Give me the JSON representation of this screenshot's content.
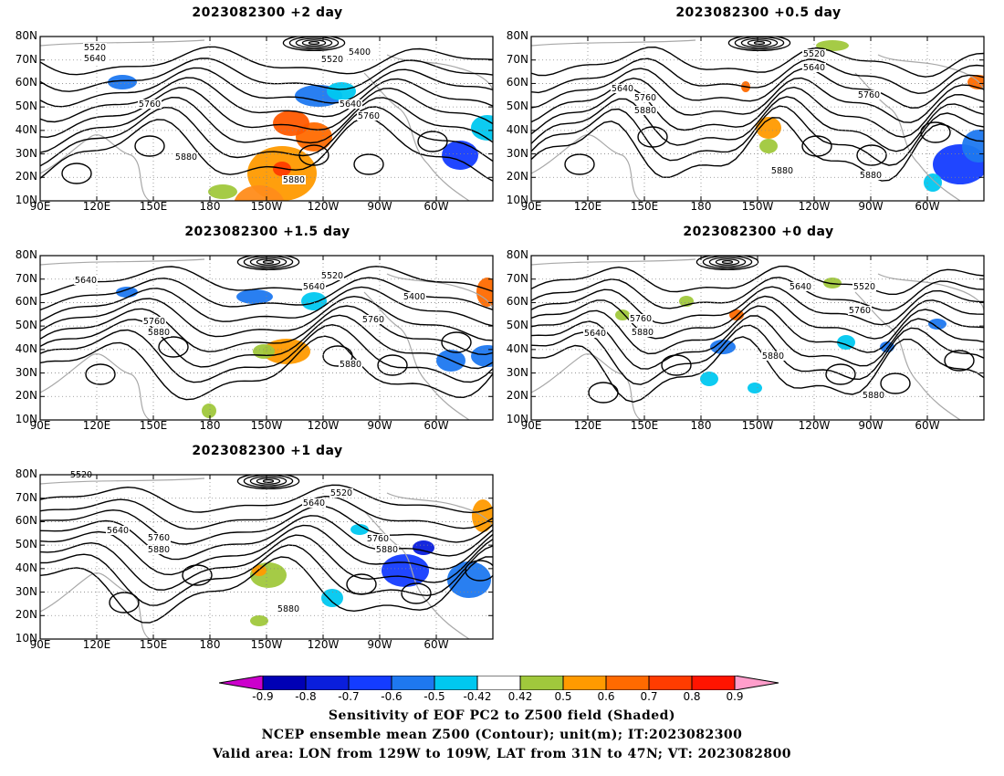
{
  "panels": [
    {
      "title": "2023082300 +2 day"
    },
    {
      "title": "2023082300 +0.5 day"
    },
    {
      "title": "2023082300 +1.5 day"
    },
    {
      "title": "2023082300 +0 day"
    },
    {
      "title": "2023082300 +1 day"
    }
  ],
  "axes": {
    "lat_labels": [
      "80N",
      "70N",
      "60N",
      "50N",
      "40N",
      "30N",
      "20N",
      "10N"
    ],
    "lon_labels": [
      "90E",
      "120E",
      "150E",
      "180",
      "150W",
      "120W",
      "90W",
      "60W"
    ]
  },
  "contour_labels": [
    "5400",
    "5520",
    "5640",
    "5760",
    "5880"
  ],
  "colorbar": {
    "labels": [
      "-0.9",
      "-0.8",
      "-0.7",
      "-0.6",
      "-0.5",
      "-0.42",
      "0.42",
      "0.5",
      "0.6",
      "0.7",
      "0.8",
      "0.9"
    ],
    "colors": [
      "#cc00cc",
      "#0000b4",
      "#0a1edc",
      "#143cff",
      "#1e78f0",
      "#00c8f0",
      "#ffffff",
      "#a0c83c",
      "#ff9a00",
      "#ff6a00",
      "#ff3c00",
      "#ff1400",
      "#ff9ecb"
    ]
  },
  "caption": {
    "line1": "Sensitivity of EOF PC2 to Z500 field (Shaded)",
    "line2": "NCEP ensemble mean Z500 (Contour); unit(m); IT:2023082300",
    "line3": "Valid area: LON from 129W to 109W, LAT from 31N to 47N; VT: 2023082800"
  }
}
